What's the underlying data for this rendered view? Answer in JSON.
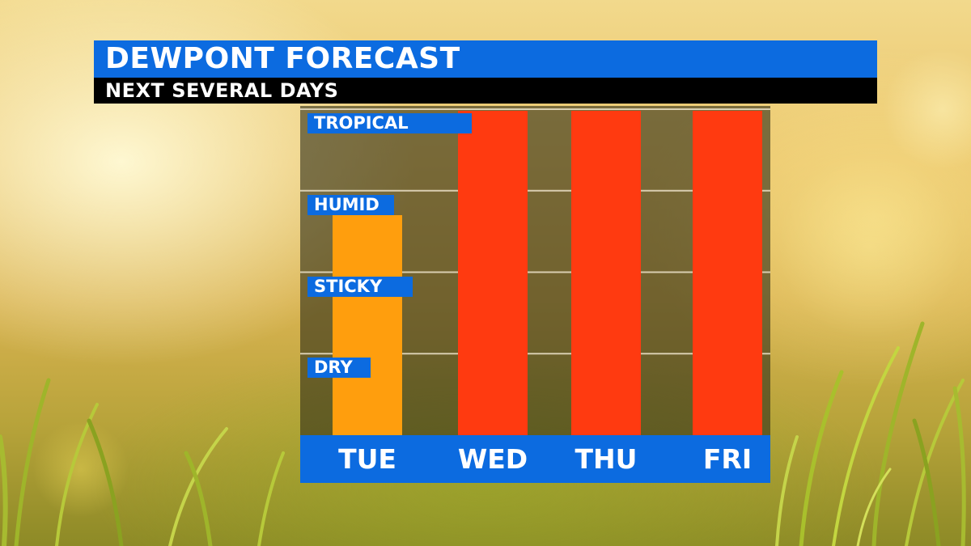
{
  "header": {
    "title": "DEWPONT FORECAST",
    "subtitle": "NEXT SEVERAL DAYS"
  },
  "chart_data": {
    "type": "bar",
    "title": "DEWPONT FORECAST",
    "subtitle": "NEXT SEVERAL DAYS",
    "categories": [
      "TUE",
      "WED",
      "THU",
      "FRI"
    ],
    "values": [
      2.7,
      4,
      4,
      4
    ],
    "y_levels": [
      "DRY",
      "STICKY",
      "HUMID",
      "TROPICAL"
    ],
    "ylim": [
      0,
      4
    ],
    "grid": true,
    "colors": [
      "#ff9e0d",
      "#ff3a10",
      "#ff3a10",
      "#ff3a10"
    ]
  }
}
